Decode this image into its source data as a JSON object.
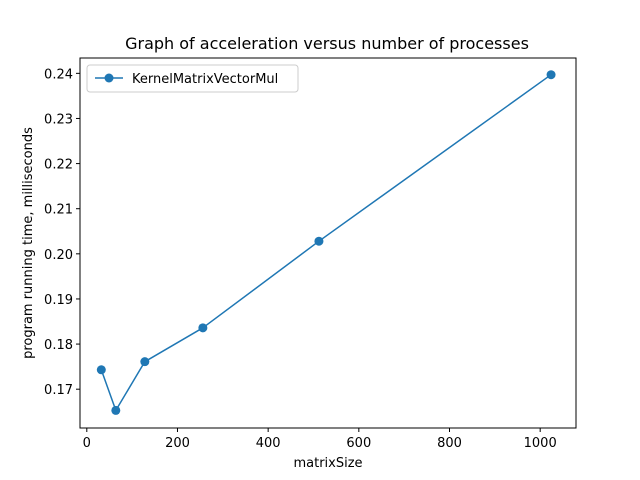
{
  "chart_data": {
    "type": "line",
    "title": "Graph of acceleration versus number of processes",
    "xlabel": "matrixSize",
    "ylabel": "program running time, milliseconds",
    "xlim": [
      -15,
      1079
    ],
    "ylim": [
      0.1614,
      0.2434
    ],
    "xticks": [
      0,
      200,
      400,
      600,
      800,
      1000
    ],
    "yticks": [
      0.17,
      0.18,
      0.19,
      0.2,
      0.21,
      0.22,
      0.23,
      0.24
    ],
    "ytick_labels": [
      "0.17",
      "0.18",
      "0.19",
      "0.20",
      "0.21",
      "0.22",
      "0.23",
      "0.24"
    ],
    "grid": false,
    "legend_position": "top-left",
    "series": [
      {
        "name": "KernelMatrixVectorMul",
        "color": "#1f77b4",
        "marker": "circle",
        "x": [
          32,
          64,
          128,
          256,
          512,
          1024
        ],
        "y": [
          0.1743,
          0.1653,
          0.1761,
          0.1836,
          0.2028,
          0.2397
        ]
      }
    ]
  }
}
